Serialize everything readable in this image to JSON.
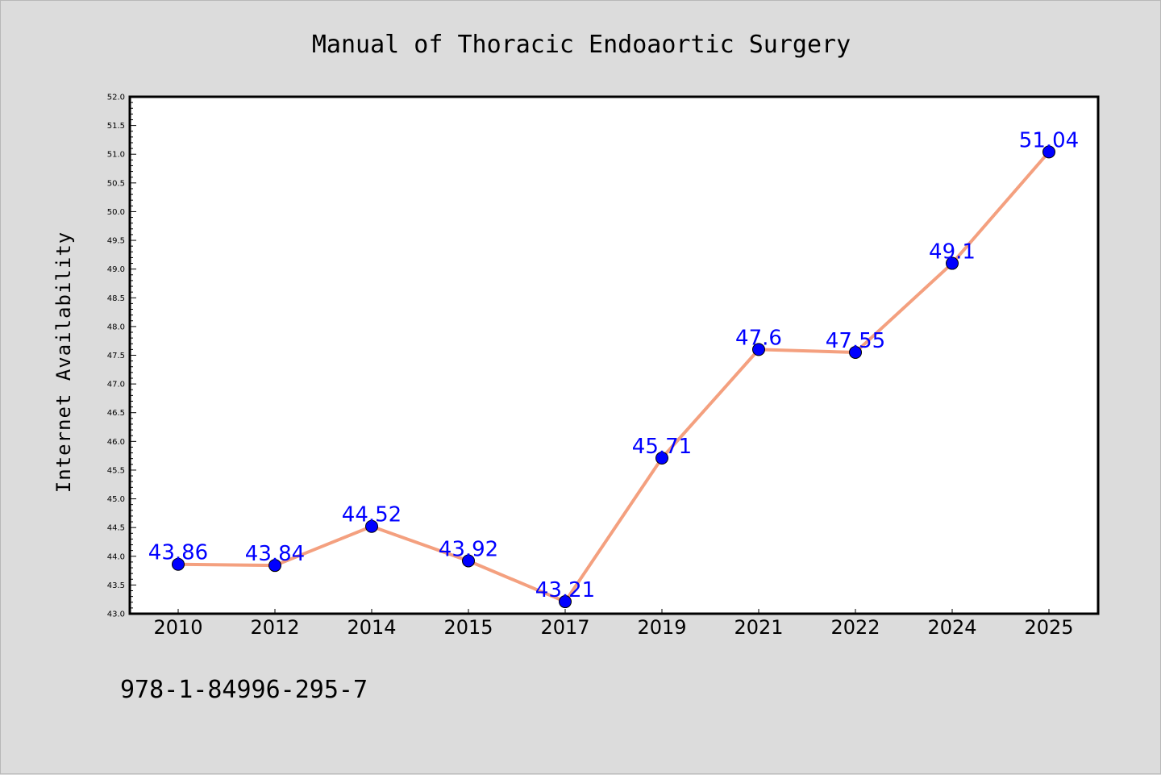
{
  "chart_data": {
    "type": "line",
    "title": "Manual of Thoracic Endoaortic Surgery",
    "xlabel": "",
    "ylabel": "Internet Availability",
    "categories": [
      "2010",
      "2012",
      "2014",
      "2015",
      "2017",
      "2019",
      "2021",
      "2022",
      "2024",
      "2025"
    ],
    "series": [
      {
        "values": [
          43.86,
          43.84,
          44.52,
          43.92,
          43.21,
          45.71,
          47.6,
          47.55,
          49.1,
          51.04
        ],
        "data_labels": [
          "43.86",
          "43.84",
          "44.52",
          "43.92",
          "43.21",
          "45.71",
          "47.6",
          "47.55",
          "49.1",
          "51.04"
        ],
        "line_color": "#f4a07f",
        "marker_color": "#0000ff"
      }
    ],
    "ylim": [
      43.0,
      52.0
    ],
    "ytick_step": 0.5,
    "y_minor_step": 0.1,
    "grid": false,
    "legend": "none"
  },
  "footer": {
    "isbn": "978-1-84996-295-7"
  },
  "colors": {
    "background": "#dcdcdc",
    "plot_area": "#ffffff",
    "data_label": "#0000ff"
  }
}
